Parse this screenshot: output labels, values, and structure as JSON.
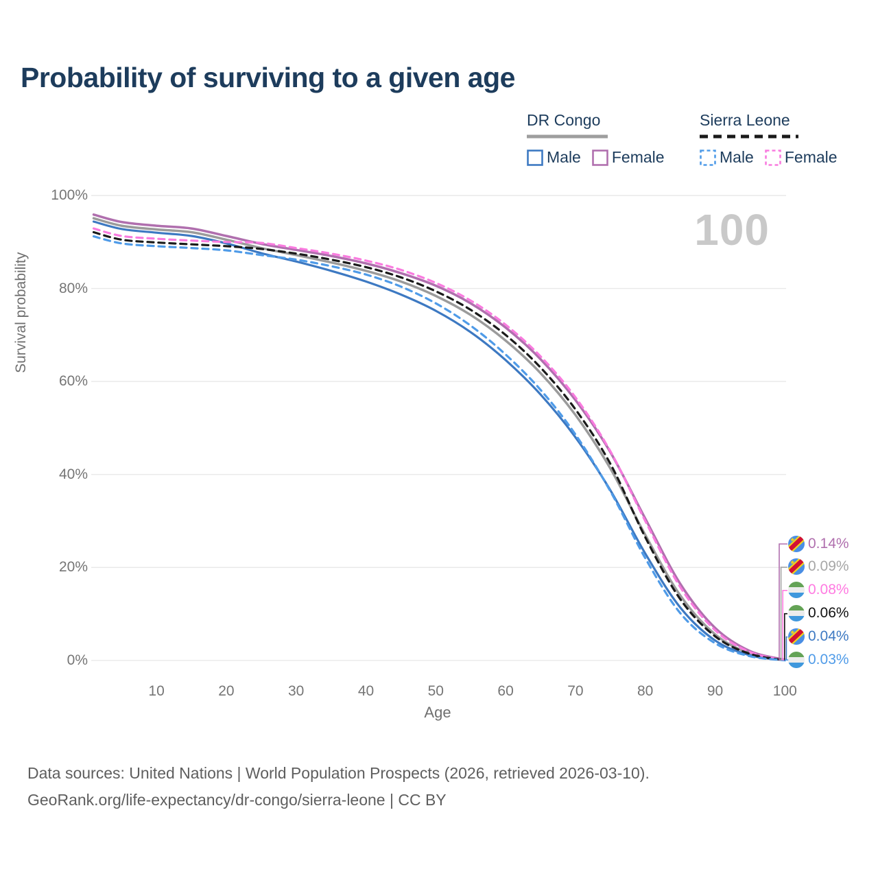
{
  "title": "Probability of surviving to a given age",
  "watermark": "100",
  "legend": {
    "groups": [
      {
        "label": "DR Congo",
        "line_style": "solid",
        "line_color": "#9e9e9e",
        "items": [
          {
            "label": "Male",
            "color": "#3d79c2",
            "dashed": false
          },
          {
            "label": "Female",
            "color": "#b06fae",
            "dashed": false
          }
        ]
      },
      {
        "label": "Sierra Leone",
        "line_style": "dashed",
        "line_color": "#1a1a1a",
        "items": [
          {
            "label": "Male",
            "color": "#4f9be8",
            "dashed": true
          },
          {
            "label": "Female",
            "color": "#f97bdf",
            "dashed": true
          }
        ]
      }
    ]
  },
  "chart_data": {
    "type": "line",
    "title": "Probability of surviving to a given age",
    "xlabel": "Age",
    "ylabel": "Survival probability",
    "xlim": [
      1,
      100
    ],
    "ylim": [
      0,
      100
    ],
    "grid": "horizontal",
    "legend_position": "top-right",
    "x_ticks": [
      {
        "value": 10,
        "label": "10"
      },
      {
        "value": 20,
        "label": "20"
      },
      {
        "value": 30,
        "label": "30"
      },
      {
        "value": 40,
        "label": "40"
      },
      {
        "value": 50,
        "label": "50"
      },
      {
        "value": 60,
        "label": "60"
      },
      {
        "value": 70,
        "label": "70"
      },
      {
        "value": 80,
        "label": "80"
      },
      {
        "value": 90,
        "label": "90"
      },
      {
        "value": 100,
        "label": "100"
      }
    ],
    "y_ticks": [
      {
        "value": 0,
        "label": "0%"
      },
      {
        "value": 20,
        "label": "20%"
      },
      {
        "value": 40,
        "label": "40%"
      },
      {
        "value": 60,
        "label": "60%"
      },
      {
        "value": 80,
        "label": "80%"
      },
      {
        "value": 100,
        "label": "100%"
      }
    ],
    "x": [
      1,
      5,
      10,
      15,
      20,
      25,
      30,
      35,
      40,
      45,
      50,
      55,
      60,
      65,
      70,
      75,
      80,
      85,
      90,
      95,
      100
    ],
    "series": [
      {
        "name": "DR Congo — Female",
        "country": "DR Congo",
        "sex": "Female",
        "color": "#b06fae",
        "dashed": false,
        "width": 3.5,
        "values": [
          95.9,
          94.3,
          93.5,
          92.9,
          91.3,
          89.6,
          88.3,
          87.0,
          85.4,
          83.3,
          80.6,
          76.8,
          71.6,
          64.8,
          56.0,
          44.8,
          30.5,
          16.5,
          7.0,
          2.0,
          0.14
        ],
        "end_label": "0.14%"
      },
      {
        "name": "DR Congo — Total",
        "country": "DR Congo",
        "sex": "Both",
        "color": "#9b9b9b",
        "dashed": false,
        "width": 3.5,
        "values": [
          95.1,
          93.5,
          92.7,
          92.1,
          90.5,
          88.7,
          87.2,
          85.6,
          83.8,
          81.5,
          78.4,
          74.3,
          68.8,
          61.8,
          52.8,
          41.3,
          27.0,
          14.0,
          5.6,
          1.5,
          0.09
        ],
        "end_label": "0.09%"
      },
      {
        "name": "DR Congo — Male",
        "country": "DR Congo",
        "sex": "Male",
        "color": "#3d79c2",
        "dashed": false,
        "width": 3.2,
        "values": [
          94.4,
          92.8,
          92.0,
          91.3,
          89.7,
          87.6,
          85.8,
          83.8,
          81.5,
          78.7,
          75.2,
          70.6,
          64.6,
          57.2,
          48.0,
          36.6,
          23.0,
          11.4,
          4.3,
          1.1,
          0.04
        ],
        "end_label": "0.04%"
      },
      {
        "name": "Sierra Leone — Female",
        "country": "Sierra Leone",
        "sex": "Female",
        "color": "#f97bdf",
        "dashed": true,
        "width": 3.2,
        "values": [
          92.9,
          91.3,
          90.7,
          90.3,
          90.0,
          89.8,
          88.7,
          87.5,
          86.0,
          84.0,
          81.2,
          77.4,
          72.2,
          65.4,
          56.6,
          45.0,
          30.0,
          15.8,
          6.5,
          1.8,
          0.08
        ],
        "end_label": "0.08%"
      },
      {
        "name": "Sierra Leone — Total",
        "country": "Sierra Leone",
        "sex": "Both",
        "color": "#1a1a1a",
        "dashed": true,
        "width": 3.2,
        "values": [
          92.1,
          90.5,
          89.9,
          89.5,
          89.1,
          88.5,
          87.5,
          86.2,
          84.6,
          82.4,
          79.4,
          75.4,
          70.0,
          63.0,
          54.0,
          42.3,
          26.5,
          13.2,
          5.2,
          1.4,
          0.06
        ],
        "end_label": "0.06%"
      },
      {
        "name": "Sierra Leone — Male",
        "country": "Sierra Leone",
        "sex": "Male",
        "color": "#4f9be8",
        "dashed": true,
        "width": 3.2,
        "values": [
          91.2,
          89.7,
          89.1,
          88.7,
          88.2,
          87.2,
          86.2,
          84.8,
          83.0,
          80.4,
          76.8,
          72.0,
          65.8,
          58.2,
          48.6,
          36.4,
          22.0,
          10.2,
          3.7,
          0.9,
          0.03
        ],
        "end_label": "0.03%"
      }
    ]
  },
  "end_labels": [
    {
      "flag": "dr-congo",
      "value": "0.14%",
      "color": "#b06fae"
    },
    {
      "flag": "dr-congo",
      "value": "0.09%",
      "color": "#a6a6a6"
    },
    {
      "flag": "sierra-leone",
      "value": "0.08%",
      "color": "#ff7ae1"
    },
    {
      "flag": "sierra-leone",
      "value": "0.06%",
      "color": "#111111"
    },
    {
      "flag": "dr-congo",
      "value": "0.04%",
      "color": "#3d79c2"
    },
    {
      "flag": "sierra-leone",
      "value": "0.03%",
      "color": "#4f9be8"
    }
  ],
  "footer": {
    "line1": "Data sources: United Nations | World Population Prospects (2026, retrieved 2026-03-10).",
    "line2": "GeoRank.org/life-expectancy/dr-congo/sierra-leone | CC BY"
  }
}
